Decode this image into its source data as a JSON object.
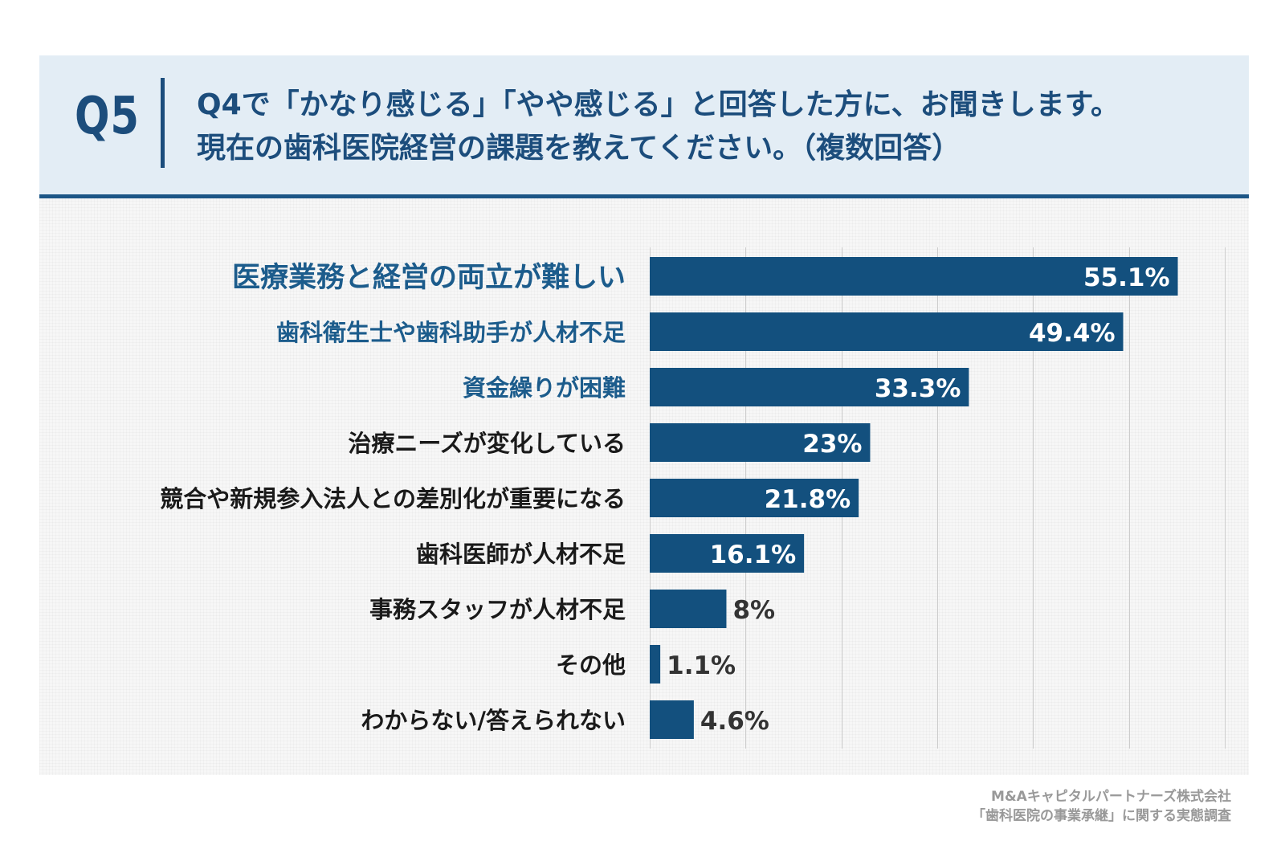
{
  "header": {
    "q_number": "Q5",
    "question_line1": "Q4で「かなり感じる」「やや感じる」と回答した方に、お聞きします。",
    "question_line2": "現在の歯科医院経営の課題を教えてください。（複数回答）"
  },
  "source": {
    "line1": "M&Aキャピタルパートナーズ株式会社",
    "line2": "「歯科医院の事業承継」に関する実態調査"
  },
  "colors": {
    "bar": "#13507e",
    "header_bg": "#e3edf5",
    "accent": "#1c4d7c",
    "highlight_label": "#1c5c8c",
    "normal_label": "#1a1a1a",
    "value_outside": "#333333",
    "grid": "#cccccc"
  },
  "chart_data": {
    "type": "bar",
    "orientation": "horizontal",
    "categories": [
      "医療業務と経営の両立が難しい",
      "歯科衛生士や歯科助手が人材不足",
      "資金繰りが困難",
      "治療ニーズが変化している",
      "競合や新規参入法人との差別化が重要になる",
      "歯科医師が人材不足",
      "事務スタッフが人材不足",
      "その他",
      "わからない/答えられない"
    ],
    "values": [
      55.1,
      49.4,
      33.3,
      23,
      21.8,
      16.1,
      8,
      1.1,
      4.6
    ],
    "value_labels": [
      "55.1%",
      "49.4%",
      "33.3%",
      "23%",
      "21.8%",
      "16.1%",
      "8%",
      "1.1%",
      "4.6%"
    ],
    "highlighted_categories": [
      0,
      1,
      2
    ],
    "xlim": [
      0,
      60
    ],
    "grid": true,
    "title": "",
    "xlabel": "",
    "ylabel": ""
  }
}
